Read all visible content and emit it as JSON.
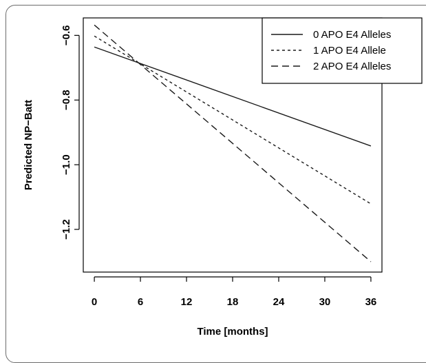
{
  "chart_data": {
    "type": "line",
    "title": "",
    "xlabel": "Time [months]",
    "ylabel": "Predicted NP−Batt",
    "x": [
      0,
      36
    ],
    "xticks": [
      0,
      6,
      12,
      18,
      24,
      30,
      36
    ],
    "xtick_labels": [
      "0",
      "6",
      "12",
      "18",
      "24",
      "30",
      "36"
    ],
    "yticks": [
      -0.6,
      -0.8,
      -1.0,
      -1.2
    ],
    "ytick_labels": [
      "−0.6",
      "−0.8",
      "−1.0",
      "−1.2"
    ],
    "xlim": [
      -1.44,
      37.44
    ],
    "ylim": [
      -1.332,
      -0.546
    ],
    "grid": false,
    "legend_position": "top-right",
    "series": [
      {
        "name": "0 APO E4 Alleles",
        "values": [
          -0.636,
          -0.942
        ],
        "line_style": "solid"
      },
      {
        "name": "1 APO E4 Allele",
        "values": [
          -0.602,
          -1.121
        ],
        "line_style": "dotted"
      },
      {
        "name": "2 APO E4 Alleles",
        "values": [
          -0.568,
          -1.3
        ],
        "line_style": "dashed"
      }
    ],
    "colors": {
      "line": "#1a1a1a",
      "axis": "#000000",
      "frame": "#6b6b6b"
    }
  }
}
